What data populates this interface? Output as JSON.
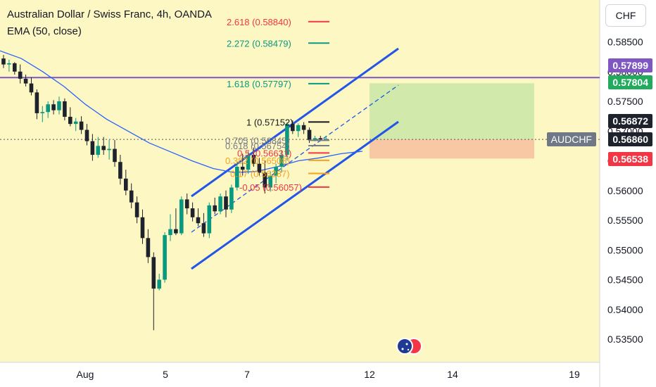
{
  "header": {
    "title": "Australian Dollar / Swiss Franc, 4h, OANDA",
    "indicator": "EMA (50, close)"
  },
  "currency_button": "CHF",
  "colors": {
    "background": "#fdf7c3",
    "up": "#089981",
    "down": "#1e222d",
    "ema": "#2962ff",
    "channel": "#2156e8",
    "resistance": "#7e57c2",
    "target_zone": "#c9e7a7",
    "stop_zone": "#f7c2a2",
    "badge_resistance": "#7e57c2",
    "badge_target": "#22ab5d",
    "badge_last": "#1e222d",
    "badge_ticker": "#707886",
    "badge_stop": "#f23645"
  },
  "badges": {
    "resistance": "0.57899",
    "target": "0.57804",
    "last": "0.56872",
    "ticker": "AUDCHF",
    "ticker_price": "0.56860",
    "stop": "0.56538"
  },
  "flag_icon": "australia-switzerland-flags-icon",
  "chart_data": {
    "type": "candlestick",
    "symbol": "AUDCHF",
    "interval": "4h",
    "ylim": [
      0.531,
      0.5904
    ],
    "y_ticks": [
      "0.58500",
      "0.58000",
      "0.57500",
      "0.57000",
      "0.56500",
      "0.56000",
      "0.55500",
      "0.55000",
      "0.54500",
      "0.54000",
      "0.53500"
    ],
    "x_ticks": [
      "Aug",
      "5",
      "7",
      "12",
      "14",
      "19"
    ],
    "candles": [
      [
        0.5822,
        0.5828,
        0.5806,
        0.5812
      ],
      [
        0.5812,
        0.582,
        0.58,
        0.5814
      ],
      [
        0.5814,
        0.5816,
        0.5795,
        0.58
      ],
      [
        0.58,
        0.5812,
        0.578,
        0.5788
      ],
      [
        0.5788,
        0.5795,
        0.5775,
        0.578
      ],
      [
        0.578,
        0.579,
        0.576,
        0.5765
      ],
      [
        0.5765,
        0.577,
        0.572,
        0.573
      ],
      [
        0.573,
        0.5742,
        0.5715,
        0.5732
      ],
      [
        0.5732,
        0.575,
        0.5722,
        0.5745
      ],
      [
        0.5745,
        0.5752,
        0.5728,
        0.5735
      ],
      [
        0.5735,
        0.5758,
        0.5728,
        0.575
      ],
      [
        0.575,
        0.5755,
        0.5718,
        0.5724
      ],
      [
        0.5724,
        0.574,
        0.5708,
        0.5712
      ],
      [
        0.5712,
        0.5722,
        0.57,
        0.5716
      ],
      [
        0.5716,
        0.5725,
        0.5695,
        0.5702
      ],
      [
        0.5702,
        0.5712,
        0.5676,
        0.5683
      ],
      [
        0.5683,
        0.5695,
        0.565,
        0.566
      ],
      [
        0.566,
        0.569,
        0.5655,
        0.5675
      ],
      [
        0.5675,
        0.569,
        0.566,
        0.5668
      ],
      [
        0.5668,
        0.5685,
        0.5652,
        0.567
      ],
      [
        0.567,
        0.5685,
        0.564,
        0.5648
      ],
      [
        0.5648,
        0.566,
        0.561,
        0.562
      ],
      [
        0.562,
        0.5635,
        0.5592,
        0.56
      ],
      [
        0.56,
        0.5612,
        0.557,
        0.558
      ],
      [
        0.558,
        0.559,
        0.5545,
        0.5555
      ],
      [
        0.5555,
        0.5568,
        0.551,
        0.552
      ],
      [
        0.552,
        0.5535,
        0.5478,
        0.5488
      ],
      [
        0.5488,
        0.5496,
        0.5365,
        0.5435
      ],
      [
        0.5435,
        0.546,
        0.5432,
        0.545
      ],
      [
        0.545,
        0.553,
        0.5445,
        0.5525
      ],
      [
        0.5525,
        0.556,
        0.5515,
        0.5535
      ],
      [
        0.5535,
        0.557,
        0.5525,
        0.5528
      ],
      [
        0.5528,
        0.559,
        0.5525,
        0.5585
      ],
      [
        0.5585,
        0.5595,
        0.556,
        0.557
      ],
      [
        0.557,
        0.558,
        0.5548,
        0.5555
      ],
      [
        0.5555,
        0.557,
        0.554,
        0.5545
      ],
      [
        0.5545,
        0.5562,
        0.5522,
        0.5528
      ],
      [
        0.5528,
        0.558,
        0.552,
        0.5575
      ],
      [
        0.5575,
        0.5588,
        0.556,
        0.5565
      ],
      [
        0.5565,
        0.5595,
        0.556,
        0.559
      ],
      [
        0.559,
        0.56,
        0.5555,
        0.5568
      ],
      [
        0.5568,
        0.561,
        0.5562,
        0.5605
      ],
      [
        0.5605,
        0.5648,
        0.56,
        0.564
      ],
      [
        0.564,
        0.5662,
        0.5625,
        0.5635
      ],
      [
        0.5635,
        0.5666,
        0.5628,
        0.566
      ],
      [
        0.566,
        0.5672,
        0.564,
        0.5645
      ],
      [
        0.5645,
        0.5655,
        0.5625,
        0.563
      ],
      [
        0.563,
        0.565,
        0.5595,
        0.5605
      ],
      [
        0.5605,
        0.5632,
        0.5598,
        0.5625
      ],
      [
        0.5625,
        0.5645,
        0.5612,
        0.564
      ],
      [
        0.564,
        0.5668,
        0.563,
        0.566
      ],
      [
        0.566,
        0.5715,
        0.565,
        0.5712
      ],
      [
        0.5712,
        0.5718,
        0.5695,
        0.57
      ],
      [
        0.57,
        0.5713,
        0.569,
        0.571
      ],
      [
        0.571,
        0.5715,
        0.5695,
        0.5702
      ],
      [
        0.5702,
        0.5706,
        0.568,
        0.5685
      ],
      [
        0.5685,
        0.5692,
        0.5683,
        0.5688
      ],
      [
        0.5688,
        0.5692,
        0.5683,
        0.5686
      ],
      [
        0.5686,
        0.5692,
        0.5684,
        0.5687
      ]
    ],
    "ema_50": [
      0.5835,
      0.5822,
      0.58,
      0.5775,
      0.5745,
      0.572,
      0.57,
      0.568,
      0.5665,
      0.565,
      0.5637,
      0.563,
      0.5632,
      0.564,
      0.565,
      0.5655,
      0.5662,
      0.5666
    ],
    "resistance_level": 0.57899,
    "fibonacci": [
      {
        "level": "2.618 (0.58840)",
        "price": 0.5884,
        "color": "#f23645"
      },
      {
        "level": "2.272 (0.58479)",
        "price": 0.58479,
        "color": "#089981"
      },
      {
        "level": "1.618 (0.57797)",
        "price": 0.57797,
        "color": "#089981"
      },
      {
        "level": "1 (0.57152)",
        "price": 0.57152,
        "color": "#131722"
      },
      {
        "level": "0.705 (0.56845)",
        "price": 0.56845,
        "color": "#787b86"
      },
      {
        "level": "0.618 (0.56754)",
        "price": 0.56754,
        "color": "#787b86"
      },
      {
        "level": "0.5 (0.56631)",
        "price": 0.56631,
        "color": "#f23645"
      },
      {
        "level": "0.382 (0.56508)",
        "price": 0.56508,
        "color": "#f7a21b"
      },
      {
        "level": "0.17 (0.56287)",
        "price": 0.56287,
        "color": "#f7a21b"
      },
      {
        "level": "-0.05 (0.56057)",
        "price": 0.56057,
        "color": "#f23645"
      }
    ],
    "channel": {
      "upper": [
        [
          0.5585,
          0.5838
        ]
      ],
      "lower": [
        [
          0.547,
          0.569
        ]
      ]
    },
    "position": {
      "entry": 0.5686,
      "target": 0.57804,
      "stop": 0.56538
    }
  }
}
